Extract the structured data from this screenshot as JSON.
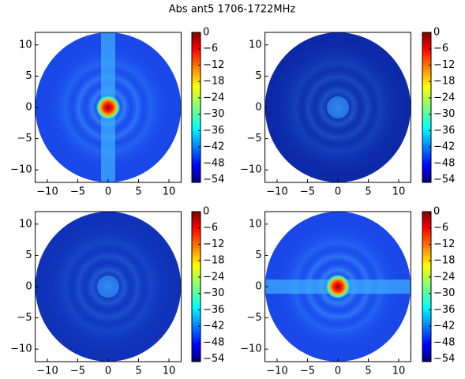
{
  "title": "Abs ant5 1706-1722MHz",
  "chart_data": [
    {
      "type": "heatmap",
      "xlim": [
        -12,
        12
      ],
      "ylim": [
        -12,
        12
      ],
      "xticks": [
        {
          "value": -10,
          "label": "−10"
        },
        {
          "value": -5,
          "label": "−5"
        },
        0,
        5,
        10
      ],
      "yticks": [
        {
          "value": -10,
          "label": "−10"
        },
        {
          "value": -5,
          "label": "−5"
        },
        0,
        5,
        10
      ],
      "clim": [
        -55,
        0
      ],
      "cticks": [
        0,
        {
          "value": -6,
          "label": "−6"
        },
        {
          "value": -12,
          "label": "−12"
        },
        {
          "value": -18,
          "label": "−18"
        },
        {
          "value": -24,
          "label": "−24"
        },
        {
          "value": -30,
          "label": "−30"
        },
        {
          "value": -36,
          "label": "−36"
        },
        {
          "value": -42,
          "label": "−42"
        },
        {
          "value": -48,
          "label": "−48"
        },
        {
          "value": -54,
          "label": "−54"
        }
      ]
    },
    {
      "type": "heatmap",
      "xlim": [
        -12,
        12
      ],
      "ylim": [
        -12,
        12
      ],
      "xticks": [
        {
          "value": -10,
          "label": "−10"
        },
        {
          "value": -5,
          "label": "−5"
        },
        0,
        5,
        10
      ],
      "yticks": [
        {
          "value": -10,
          "label": "−10"
        },
        {
          "value": -5,
          "label": "−5"
        },
        0,
        5,
        10
      ],
      "clim": [
        -55,
        0
      ],
      "cticks": [
        0,
        {
          "value": -6,
          "label": "−6"
        },
        {
          "value": -12,
          "label": "−12"
        },
        {
          "value": -18,
          "label": "−18"
        },
        {
          "value": -24,
          "label": "−24"
        },
        {
          "value": -30,
          "label": "−30"
        },
        {
          "value": -36,
          "label": "−36"
        },
        {
          "value": -42,
          "label": "−42"
        },
        {
          "value": -48,
          "label": "−48"
        },
        {
          "value": -54,
          "label": "−54"
        }
      ]
    },
    {
      "type": "heatmap",
      "xlim": [
        -12,
        12
      ],
      "ylim": [
        -12,
        12
      ],
      "xticks": [
        {
          "value": -10,
          "label": "−10"
        },
        {
          "value": -5,
          "label": "−5"
        },
        0,
        5,
        10
      ],
      "yticks": [
        {
          "value": -10,
          "label": "−10"
        },
        {
          "value": -5,
          "label": "−5"
        },
        0,
        5,
        10
      ],
      "clim": [
        -55,
        0
      ],
      "cticks": [
        0,
        {
          "value": -6,
          "label": "−6"
        },
        {
          "value": -12,
          "label": "−12"
        },
        {
          "value": -18,
          "label": "−18"
        },
        {
          "value": -24,
          "label": "−24"
        },
        {
          "value": -30,
          "label": "−30"
        },
        {
          "value": -36,
          "label": "−36"
        },
        {
          "value": -42,
          "label": "−42"
        },
        {
          "value": -48,
          "label": "−48"
        },
        {
          "value": -54,
          "label": "−54"
        }
      ]
    },
    {
      "type": "heatmap",
      "xlim": [
        -12,
        12
      ],
      "ylim": [
        -12,
        12
      ],
      "xticks": [
        {
          "value": -10,
          "label": "−10"
        },
        {
          "value": -5,
          "label": "−5"
        },
        0,
        5,
        10
      ],
      "yticks": [
        {
          "value": -10,
          "label": "−10"
        },
        {
          "value": -5,
          "label": "−5"
        },
        0,
        5,
        10
      ],
      "clim": [
        -55,
        0
      ],
      "cticks": [
        0,
        {
          "value": -6,
          "label": "−6"
        },
        {
          "value": -12,
          "label": "−12"
        },
        {
          "value": -18,
          "label": "−18"
        },
        {
          "value": -24,
          "label": "−24"
        },
        {
          "value": -30,
          "label": "−30"
        },
        {
          "value": -36,
          "label": "−36"
        },
        {
          "value": -42,
          "label": "−42"
        },
        {
          "value": -48,
          "label": "−48"
        },
        {
          "value": -54,
          "label": "−54"
        }
      ]
    }
  ]
}
